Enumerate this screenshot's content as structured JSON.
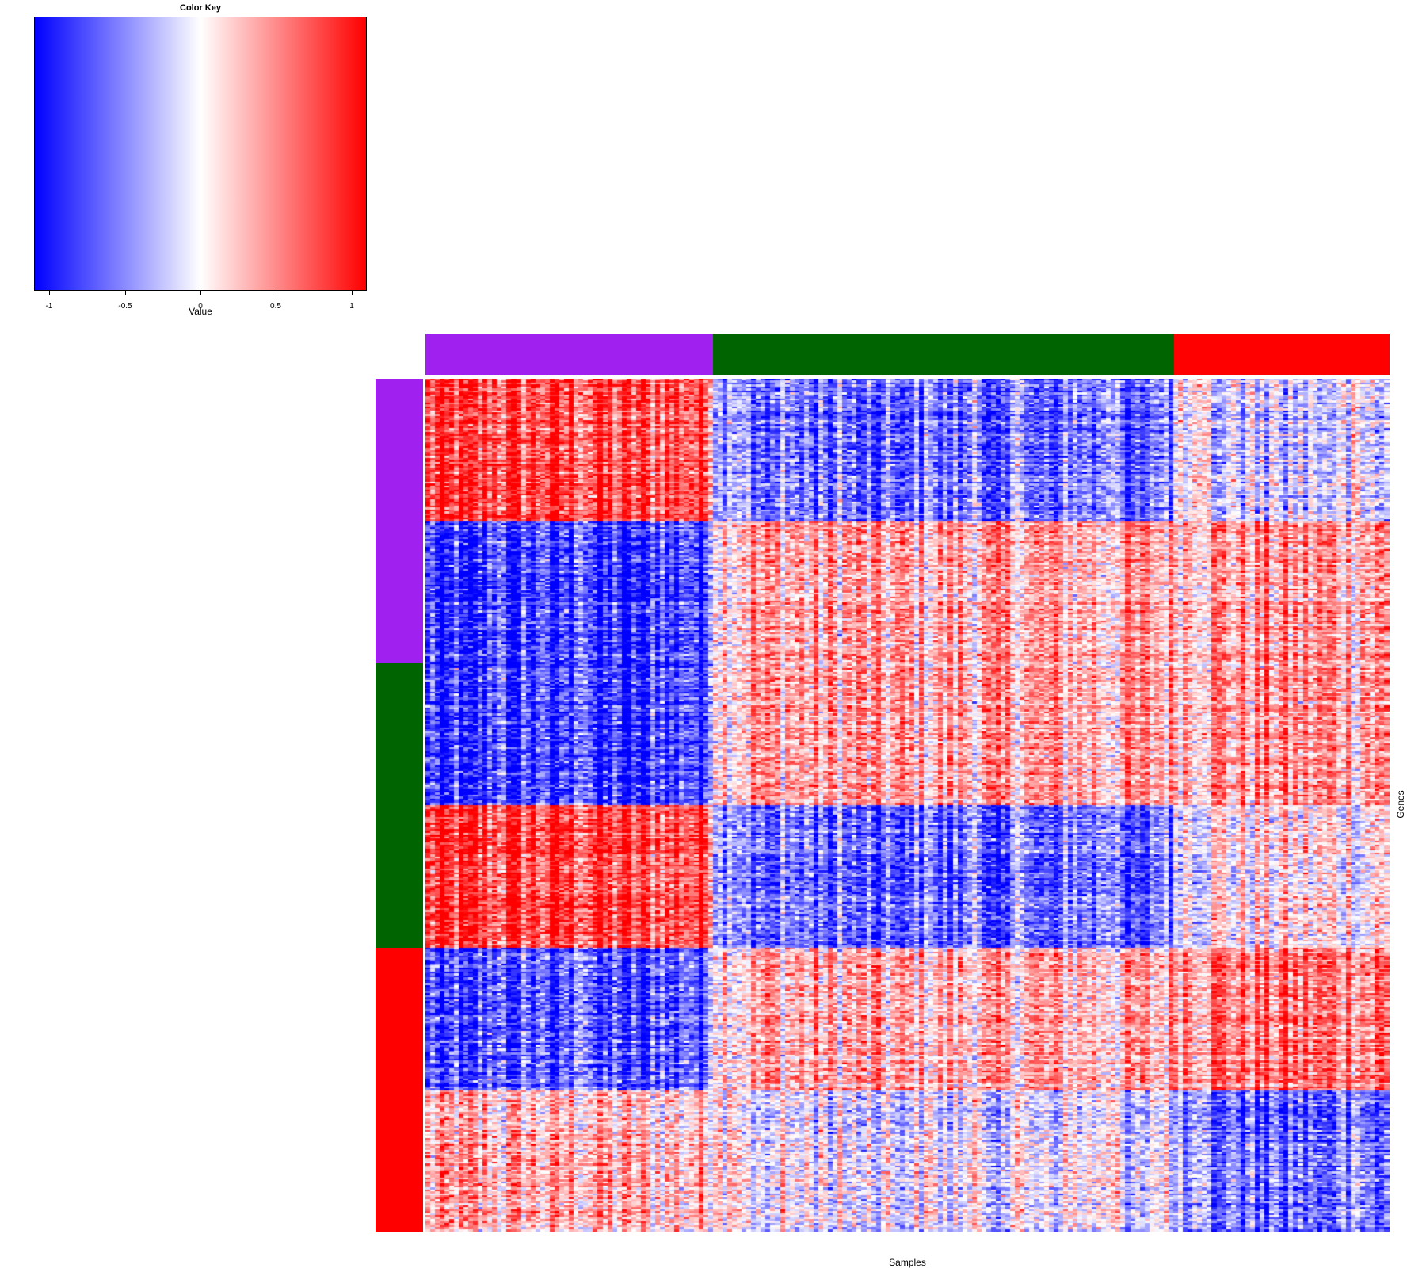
{
  "chart_data": {
    "type": "heatmap",
    "title": "",
    "xlabel": "Samples",
    "ylabel": "Genes",
    "color_key": {
      "title": "Color Key",
      "xlabel": "Value",
      "range": [
        -1.1,
        1.1
      ],
      "ticks": [
        -1,
        -0.5,
        0,
        0.5,
        1
      ],
      "tick_labels": [
        "-1",
        "-0.5",
        "0",
        "0.5",
        "1"
      ],
      "colors": {
        "low": "#0000ff",
        "mid": "#ffffff",
        "high": "#ff0000"
      }
    },
    "column_groups": [
      {
        "name": "purple",
        "color": "#a020f0",
        "n_samples": 60
      },
      {
        "name": "darkgreen",
        "color": "#006400",
        "n_samples": 96
      },
      {
        "name": "red",
        "color": "#ff0000",
        "n_samples": 45
      }
    ],
    "row_groups": [
      {
        "name": "purple",
        "color": "#a020f0",
        "fraction": 0.334
      },
      {
        "name": "darkgreen",
        "color": "#006400",
        "fraction": 0.333
      },
      {
        "name": "red",
        "color": "#ff0000",
        "fraction": 0.333
      }
    ],
    "row_blocks": [
      {
        "fraction": 0.167,
        "mean_by_column_group": [
          0.75,
          -0.6,
          -0.2
        ]
      },
      {
        "fraction": 0.333,
        "mean_by_column_group": [
          -0.8,
          0.35,
          0.45
        ]
      },
      {
        "fraction": 0.167,
        "mean_by_column_group": [
          0.8,
          -0.6,
          0.1
        ]
      },
      {
        "fraction": 0.167,
        "mean_by_column_group": [
          -0.7,
          0.3,
          0.6
        ]
      },
      {
        "fraction": 0.166,
        "mean_by_column_group": [
          0.3,
          -0.05,
          -0.6
        ]
      }
    ],
    "n_rows_rendered": 430,
    "n_cols_rendered": 201
  }
}
